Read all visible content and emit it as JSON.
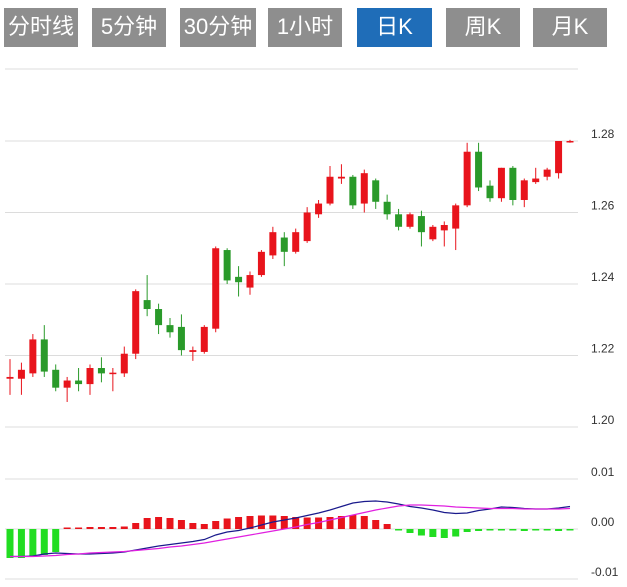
{
  "tabs": {
    "items": [
      "分时线",
      "5分钟",
      "30分钟",
      "1小时",
      "日K",
      "周K",
      "月K"
    ],
    "active": 4
  },
  "chart_data": [
    {
      "type": "candlestick",
      "up_color": "#e8141c",
      "down_color": "#2a9a2a",
      "open": [
        1.2135,
        1.2135,
        1.215,
        1.2245,
        1.216,
        1.211,
        1.213,
        1.212,
        1.2165,
        1.215,
        1.215,
        1.2205,
        1.2355,
        1.233,
        1.2285,
        1.228,
        1.221,
        1.221,
        1.2275,
        1.2495,
        1.242,
        1.239,
        1.2425,
        1.248,
        1.253,
        1.249,
        1.252,
        1.2595,
        1.2625,
        1.2695,
        1.27,
        1.2625,
        1.269,
        1.263,
        1.2595,
        1.256,
        1.259,
        1.2525,
        1.255,
        1.2555,
        1.262,
        1.277,
        1.2675,
        1.264,
        1.2725,
        1.2635,
        1.2685,
        1.27,
        1.271,
        1.2798
      ],
      "high": [
        1.219,
        1.218,
        1.226,
        1.2285,
        1.2175,
        1.214,
        1.2165,
        1.2175,
        1.2195,
        1.2165,
        1.2225,
        1.2385,
        1.2425,
        1.2345,
        1.2305,
        1.2315,
        1.2225,
        1.2285,
        1.2505,
        1.25,
        1.245,
        1.2435,
        1.2495,
        1.256,
        1.2545,
        1.2555,
        1.2615,
        1.2635,
        1.273,
        1.2735,
        1.2705,
        1.272,
        1.2695,
        1.265,
        1.261,
        1.26,
        1.2605,
        1.2565,
        1.2575,
        1.2625,
        1.2795,
        1.2795,
        1.269,
        1.2725,
        1.273,
        1.2695,
        1.2725,
        1.2725,
        1.28,
        1.2803
      ],
      "low": [
        1.209,
        1.209,
        1.214,
        1.214,
        1.21,
        1.207,
        1.21,
        1.209,
        1.2125,
        1.21,
        1.214,
        1.219,
        1.231,
        1.226,
        1.225,
        1.22,
        1.2185,
        1.2205,
        1.2265,
        1.24,
        1.2365,
        1.237,
        1.242,
        1.247,
        1.245,
        1.2485,
        1.2515,
        1.2585,
        1.262,
        1.268,
        1.261,
        1.26,
        1.261,
        1.258,
        1.255,
        1.2555,
        1.2505,
        1.252,
        1.2505,
        1.2495,
        1.2615,
        1.266,
        1.263,
        1.263,
        1.262,
        1.2615,
        1.268,
        1.269,
        1.2695,
        1.2795
      ],
      "close": [
        1.214,
        1.216,
        1.2245,
        1.2155,
        1.211,
        1.213,
        1.212,
        1.2165,
        1.215,
        1.2152,
        1.2205,
        1.238,
        1.233,
        1.2285,
        1.2265,
        1.2215,
        1.2215,
        1.228,
        1.25,
        1.241,
        1.2405,
        1.2425,
        1.249,
        1.2545,
        1.249,
        1.2545,
        1.26,
        1.2625,
        1.27,
        1.27,
        1.262,
        1.271,
        1.263,
        1.2595,
        1.256,
        1.2595,
        1.2545,
        1.256,
        1.2565,
        1.262,
        1.277,
        1.267,
        1.264,
        1.2725,
        1.2635,
        1.269,
        1.2695,
        1.272,
        1.28,
        1.28
      ],
      "ylim": [
        1.2,
        1.3
      ],
      "yticks": [
        1.28,
        1.26,
        1.24,
        1.22,
        {
          "value": 1.2,
          "label": "1.20"
        }
      ],
      "grid": true
    },
    {
      "type": "macd",
      "up_color": "#e8141c",
      "down_color": "#22dd22",
      "histogram": [
        -0.0058,
        -0.0058,
        -0.0056,
        -0.0052,
        -0.0046,
        0.0003,
        0.0003,
        0.0004,
        0.0004,
        0.0004,
        0.0005,
        0.0012,
        0.0022,
        0.0024,
        0.0022,
        0.0018,
        0.0012,
        0.001,
        0.0016,
        0.0021,
        0.0024,
        0.0026,
        0.0027,
        0.0027,
        0.0026,
        0.0024,
        0.0023,
        0.0023,
        0.0024,
        0.0026,
        0.0028,
        0.0026,
        0.0018,
        0.001,
        -0.0002,
        -0.0008,
        -0.0013,
        -0.0016,
        -0.0018,
        -0.0015,
        -0.0006,
        -0.0004,
        -0.0003,
        -0.0003,
        -0.0003,
        -0.0004,
        -0.0003,
        -0.0003,
        -0.0004,
        -0.0002
      ],
      "series": [
        {
          "color": "#1a1a8c",
          "values": [
            -0.0055,
            -0.0055,
            -0.0054,
            -0.005,
            -0.0048,
            -0.0049,
            -0.005,
            -0.005,
            -0.0049,
            -0.0048,
            -0.0046,
            -0.0042,
            -0.0038,
            -0.0034,
            -0.0031,
            -0.0028,
            -0.0025,
            -0.0021,
            -0.0012,
            -0.0006,
            -0.0003,
            0.0002,
            0.0008,
            0.0014,
            0.0018,
            0.0022,
            0.0027,
            0.0032,
            0.0038,
            0.0045,
            0.0052,
            0.0055,
            0.0056,
            0.0054,
            0.005,
            0.0045,
            0.0042,
            0.0038,
            0.0033,
            0.0031,
            0.0032,
            0.0037,
            0.004,
            0.0044,
            0.0043,
            0.0041,
            0.004,
            0.004,
            0.0042,
            0.0045
          ]
        },
        {
          "color": "#e020e0",
          "values": [
            -0.0055,
            -0.0055,
            -0.0055,
            -0.0054,
            -0.0053,
            -0.0051,
            -0.005,
            -0.0048,
            -0.0047,
            -0.0046,
            -0.0045,
            -0.0043,
            -0.0041,
            -0.0039,
            -0.0036,
            -0.0034,
            -0.0031,
            -0.0028,
            -0.0024,
            -0.002,
            -0.0016,
            -0.0012,
            -0.0008,
            -0.0004,
            0.0,
            0.0004,
            0.0009,
            0.0013,
            0.0018,
            0.0023,
            0.0028,
            0.0033,
            0.0038,
            0.0042,
            0.0046,
            0.0048,
            0.0048,
            0.0047,
            0.0046,
            0.0044,
            0.0043,
            0.0042,
            0.0041,
            0.0041,
            0.0041,
            0.004,
            0.004,
            0.004,
            0.004,
            0.0041
          ]
        }
      ],
      "ylim": [
        -0.01,
        0.01
      ],
      "yticks": [
        0.01,
        {
          "value": 0,
          "label": "0.00"
        },
        -0.01
      ],
      "grid": true
    }
  ]
}
